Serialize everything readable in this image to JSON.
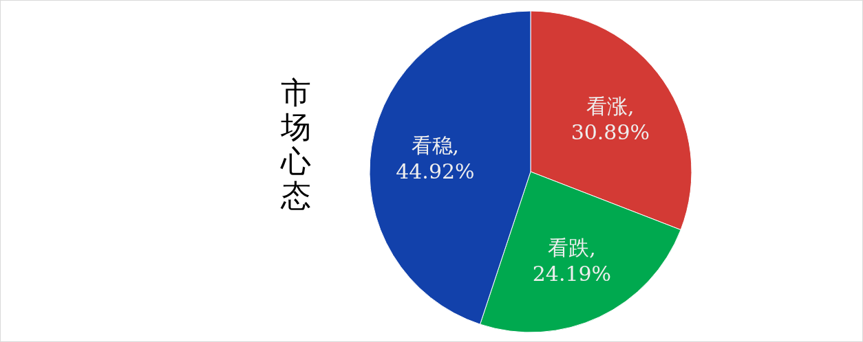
{
  "chart_data": {
    "type": "pie",
    "title": "市场心态",
    "categories": [
      "看涨",
      "看跌",
      "看稳"
    ],
    "values": [
      30.89,
      24.19,
      44.92
    ],
    "colors": [
      "#d33a35",
      "#00a94f",
      "#1241ab"
    ],
    "value_labels": [
      ",\n30.89%",
      ",\n24.19%",
      ",\n44.92%"
    ]
  }
}
